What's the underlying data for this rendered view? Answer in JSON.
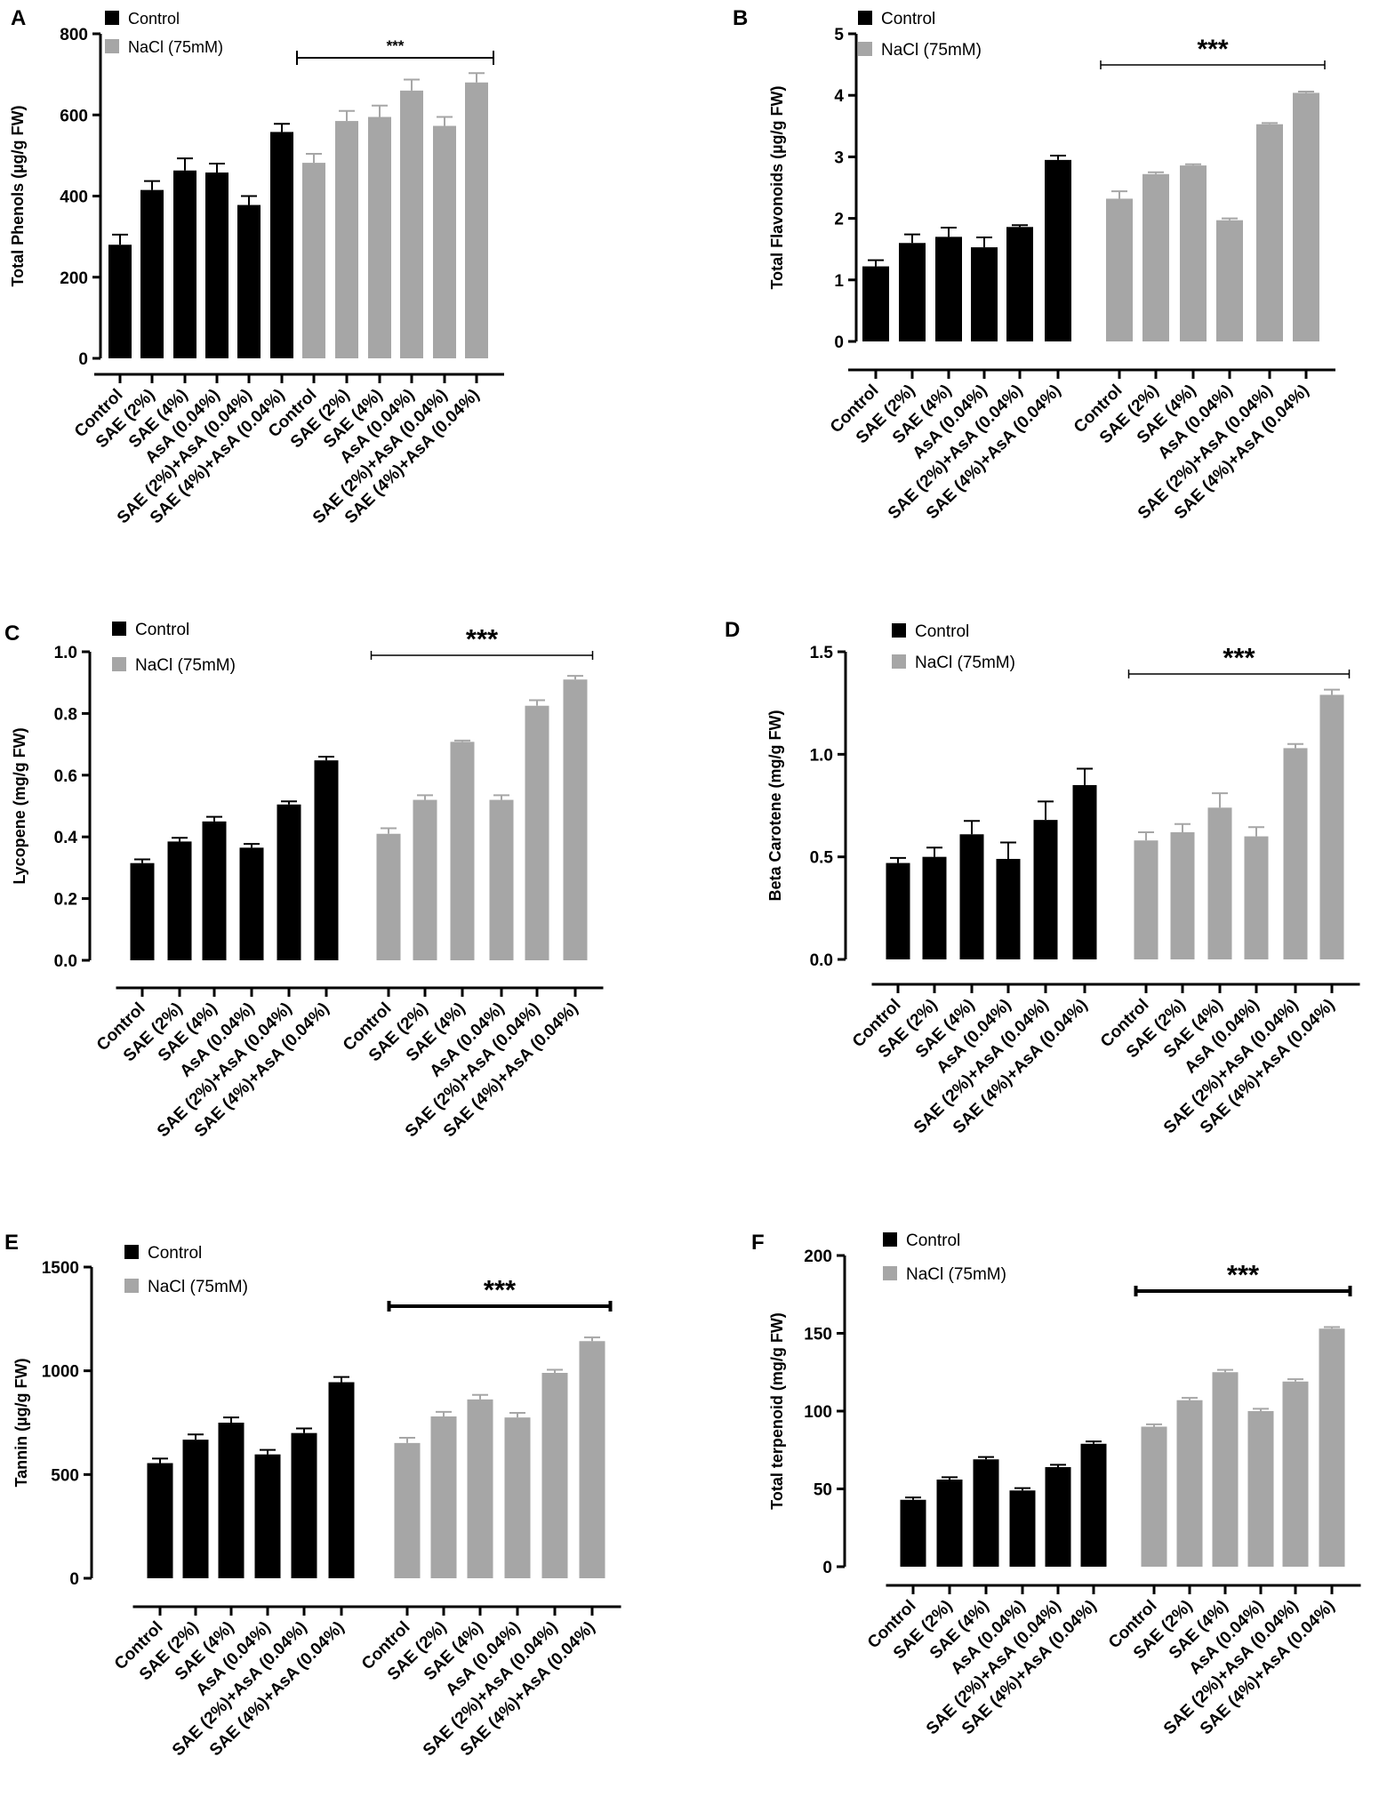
{
  "colors": {
    "control": "#000000",
    "nacl": "#a6a6a6",
    "axis": "#000000"
  },
  "chart_data": [
    {
      "type": "bar",
      "panel": "A",
      "ylabel": "Total Phenols (µg/g FW)",
      "ylim": [
        0,
        800
      ],
      "yticks": [
        "0",
        "200",
        "400",
        "600",
        "800"
      ],
      "categories": [
        "Control",
        "SAE (2%)",
        "SAE (4%)",
        "AsA (0.04%)",
        "SAE (2%)+AsA (0.04%)",
        "SAE (4%)+AsA (0.04%)"
      ],
      "series": [
        {
          "name": "Control",
          "values": [
            280,
            415,
            463,
            458,
            378,
            558
          ],
          "errors": [
            25,
            22,
            30,
            22,
            22,
            20
          ]
        },
        {
          "name": "NaCl (75mM)",
          "values": [
            482,
            585,
            595,
            660,
            573,
            680
          ],
          "errors": [
            22,
            25,
            28,
            27,
            22,
            23
          ]
        }
      ],
      "significance": "***"
    },
    {
      "type": "bar",
      "panel": "B",
      "ylabel": "Total Flavonoids (µg/g FW)",
      "ylim": [
        0,
        5
      ],
      "yticks": [
        "0",
        "1",
        "2",
        "3",
        "4",
        "5"
      ],
      "categories": [
        "Control",
        "SAE (2%)",
        "SAE (4%)",
        "AsA (0.04%)",
        "SAE (2%)+AsA (0.04%)",
        "SAE (4%)+AsA (0.04%)"
      ],
      "series": [
        {
          "name": "Control",
          "values": [
            1.22,
            1.6,
            1.7,
            1.53,
            1.86,
            2.95
          ],
          "errors": [
            0.1,
            0.14,
            0.15,
            0.16,
            0.03,
            0.07
          ]
        },
        {
          "name": "NaCl (75mM)",
          "values": [
            2.32,
            2.72,
            2.86,
            1.97,
            3.53,
            4.04
          ],
          "errors": [
            0.12,
            0.03,
            0.02,
            0.03,
            0.02,
            0.02
          ]
        }
      ],
      "significance": "***"
    },
    {
      "type": "bar",
      "panel": "C",
      "ylabel": "Lycopene (mg/g FW)",
      "ylim": [
        0,
        1.0
      ],
      "yticks": [
        "0.0",
        "0.2",
        "0.4",
        "0.6",
        "0.8",
        "1.0"
      ],
      "categories": [
        "Control",
        "SAE (2%)",
        "SAE (4%)",
        "AsA (0.04%)",
        "SAE (2%)+AsA (0.04%)",
        "SAE (4%)+AsA (0.04%)"
      ],
      "series": [
        {
          "name": "Control",
          "values": [
            0.315,
            0.385,
            0.45,
            0.365,
            0.505,
            0.648
          ],
          "errors": [
            0.012,
            0.012,
            0.015,
            0.012,
            0.01,
            0.012
          ]
        },
        {
          "name": "NaCl (75mM)",
          "values": [
            0.41,
            0.52,
            0.708,
            0.52,
            0.825,
            0.91
          ],
          "errors": [
            0.018,
            0.015,
            0.004,
            0.015,
            0.018,
            0.012
          ]
        }
      ],
      "significance": "***"
    },
    {
      "type": "bar",
      "panel": "D",
      "ylabel": "Beta Carotene (mg/g FW)",
      "ylim": [
        0,
        1.5
      ],
      "yticks": [
        "0.0",
        "0.5",
        "1.0",
        "1.5"
      ],
      "categories": [
        "Control",
        "SAE (2%)",
        "SAE (4%)",
        "AsA (0.04%)",
        "SAE (2%)+AsA (0.04%)",
        "SAE (4%)+AsA (0.04%)"
      ],
      "series": [
        {
          "name": "Control",
          "values": [
            0.47,
            0.5,
            0.61,
            0.49,
            0.68,
            0.85
          ],
          "errors": [
            0.025,
            0.045,
            0.065,
            0.08,
            0.09,
            0.08
          ]
        },
        {
          "name": "NaCl (75mM)",
          "values": [
            0.58,
            0.62,
            0.74,
            0.6,
            1.03,
            1.29
          ],
          "errors": [
            0.04,
            0.04,
            0.07,
            0.045,
            0.02,
            0.025
          ]
        }
      ],
      "significance": "***"
    },
    {
      "type": "bar",
      "panel": "E",
      "ylabel": "Tannin (µg/g FW)",
      "ylim": [
        0,
        1500
      ],
      "yticks": [
        "0",
        "500",
        "1000",
        "1500"
      ],
      "categories": [
        "Control",
        "SAE (2%)",
        "SAE (4%)",
        "AsA (0.04%)",
        "SAE (2%)+AsA (0.04%)",
        "SAE (4%)+AsA (0.04%)"
      ],
      "series": [
        {
          "name": "Control",
          "values": [
            555,
            668,
            750,
            597,
            700,
            945
          ],
          "errors": [
            22,
            25,
            25,
            22,
            22,
            25
          ]
        },
        {
          "name": "NaCl (75mM)",
          "values": [
            652,
            780,
            862,
            775,
            990,
            1143
          ],
          "errors": [
            25,
            22,
            22,
            22,
            15,
            18
          ]
        }
      ],
      "significance": "***"
    },
    {
      "type": "bar",
      "panel": "F",
      "ylabel": "Total terpenoid (mg/g FW)",
      "ylim": [
        0,
        200
      ],
      "yticks": [
        "0",
        "50",
        "100",
        "150",
        "200"
      ],
      "categories": [
        "Control",
        "SAE (2%)",
        "SAE (4%)",
        "AsA (0.04%)",
        "SAE (2%)+AsA (0.04%)",
        "SAE (4%)+AsA (0.04%)"
      ],
      "series": [
        {
          "name": "Control",
          "values": [
            43,
            56,
            69,
            49,
            64,
            79
          ],
          "errors": [
            1.5,
            1.5,
            1.5,
            1.5,
            1.5,
            1.5
          ]
        },
        {
          "name": "NaCl (75mM)",
          "values": [
            90,
            107,
            125,
            100,
            119,
            153
          ],
          "errors": [
            1.5,
            1.5,
            1.5,
            1.5,
            1.5,
            1.0
          ]
        }
      ],
      "significance": "***"
    }
  ]
}
